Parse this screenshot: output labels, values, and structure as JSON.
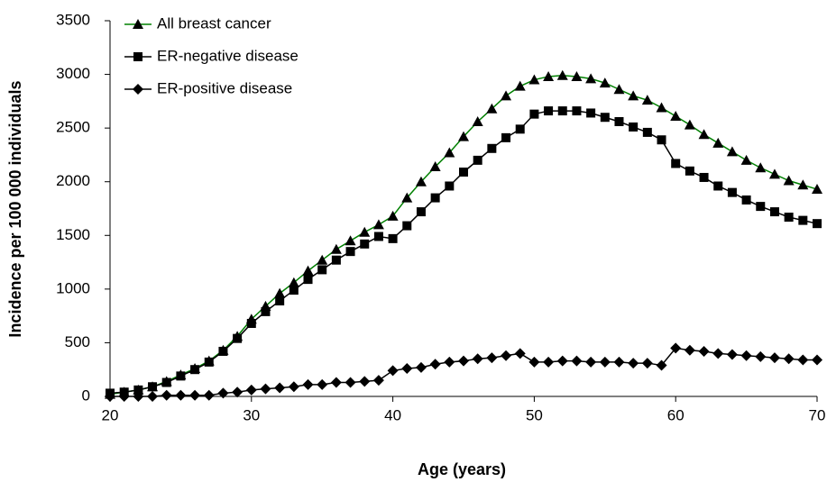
{
  "chart_data": {
    "type": "line",
    "x_label": "Age (years)",
    "y_label": "Incidence per 100 000 individuals",
    "x": [
      20,
      21,
      22,
      23,
      24,
      25,
      26,
      27,
      28,
      29,
      30,
      31,
      32,
      33,
      34,
      35,
      36,
      37,
      38,
      39,
      40,
      41,
      42,
      43,
      44,
      45,
      46,
      47,
      48,
      49,
      50,
      51,
      52,
      53,
      54,
      55,
      56,
      57,
      58,
      59,
      60,
      61,
      62,
      63,
      64,
      65,
      66,
      67,
      68,
      69,
      70
    ],
    "xlim": [
      20,
      70
    ],
    "xticks": [
      20,
      30,
      40,
      50,
      60,
      70
    ],
    "ylim": [
      0,
      3500
    ],
    "yticks": [
      0,
      500,
      1000,
      1500,
      2000,
      2500,
      3000,
      3500
    ],
    "grid": false,
    "legend": "top-left",
    "series": [
      {
        "name": "All breast cancer",
        "color": "#008000",
        "marker": "triangle",
        "marker_color": "#000000",
        "values": [
          20,
          40,
          60,
          90,
          140,
          200,
          260,
          330,
          430,
          560,
          720,
          840,
          960,
          1060,
          1170,
          1270,
          1370,
          1450,
          1530,
          1600,
          1680,
          1850,
          2000,
          2140,
          2270,
          2420,
          2560,
          2680,
          2800,
          2890,
          2950,
          2980,
          2990,
          2980,
          2960,
          2920,
          2860,
          2800,
          2760,
          2690,
          2610,
          2530,
          2440,
          2360,
          2280,
          2200,
          2130,
          2070,
          2010,
          1970,
          1930
        ]
      },
      {
        "name": "ER-negative disease",
        "color": "#000000",
        "marker": "square",
        "marker_color": "#000000",
        "values": [
          30,
          40,
          60,
          90,
          130,
          190,
          250,
          320,
          420,
          540,
          680,
          790,
          890,
          990,
          1090,
          1180,
          1270,
          1350,
          1420,
          1490,
          1470,
          1590,
          1720,
          1850,
          1960,
          2090,
          2200,
          2310,
          2410,
          2490,
          2630,
          2660,
          2660,
          2660,
          2640,
          2600,
          2560,
          2510,
          2460,
          2390,
          2170,
          2100,
          2040,
          1960,
          1900,
          1830,
          1770,
          1720,
          1670,
          1640,
          1610
        ]
      },
      {
        "name": "ER-positive disease",
        "color": "#000000",
        "marker": "diamond",
        "marker_color": "#000000",
        "values": [
          0,
          0,
          0,
          0,
          10,
          10,
          10,
          10,
          30,
          40,
          60,
          70,
          80,
          90,
          110,
          110,
          130,
          130,
          140,
          150,
          240,
          260,
          270,
          300,
          320,
          330,
          350,
          360,
          380,
          400,
          320,
          320,
          330,
          330,
          320,
          320,
          320,
          310,
          310,
          290,
          450,
          430,
          420,
          400,
          390,
          380,
          370,
          360,
          350,
          340,
          340
        ]
      }
    ]
  }
}
